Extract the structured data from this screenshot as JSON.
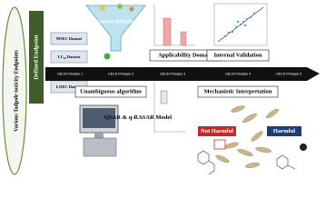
{
  "endpoints": "Various Tadpole toxicity Endpoints",
  "defined_endpoint": "Defined Endpoint",
  "datasets": [
    "NOEC Dataset",
    "LC₅₀ Dataset",
    "LOEC Dataset"
  ],
  "feature_selection": "Feature Selection",
  "principles": [
    "OECD Principle 1",
    "OECD Principle 2",
    "OECD Principle 3",
    "OECD Principle 4",
    "OECD Principle 5"
  ],
  "labels": {
    "applicability": "Applicability Domain",
    "validation": "Internal Validation",
    "algorithm": "Unambiguous algorithm",
    "mechanistic": "Mechanistic Interpretation"
  },
  "model": "QSAR & q-RASAR Model",
  "outcomes": {
    "not_harmful": "Not Harmful",
    "harmful": "Harmful"
  }
}
